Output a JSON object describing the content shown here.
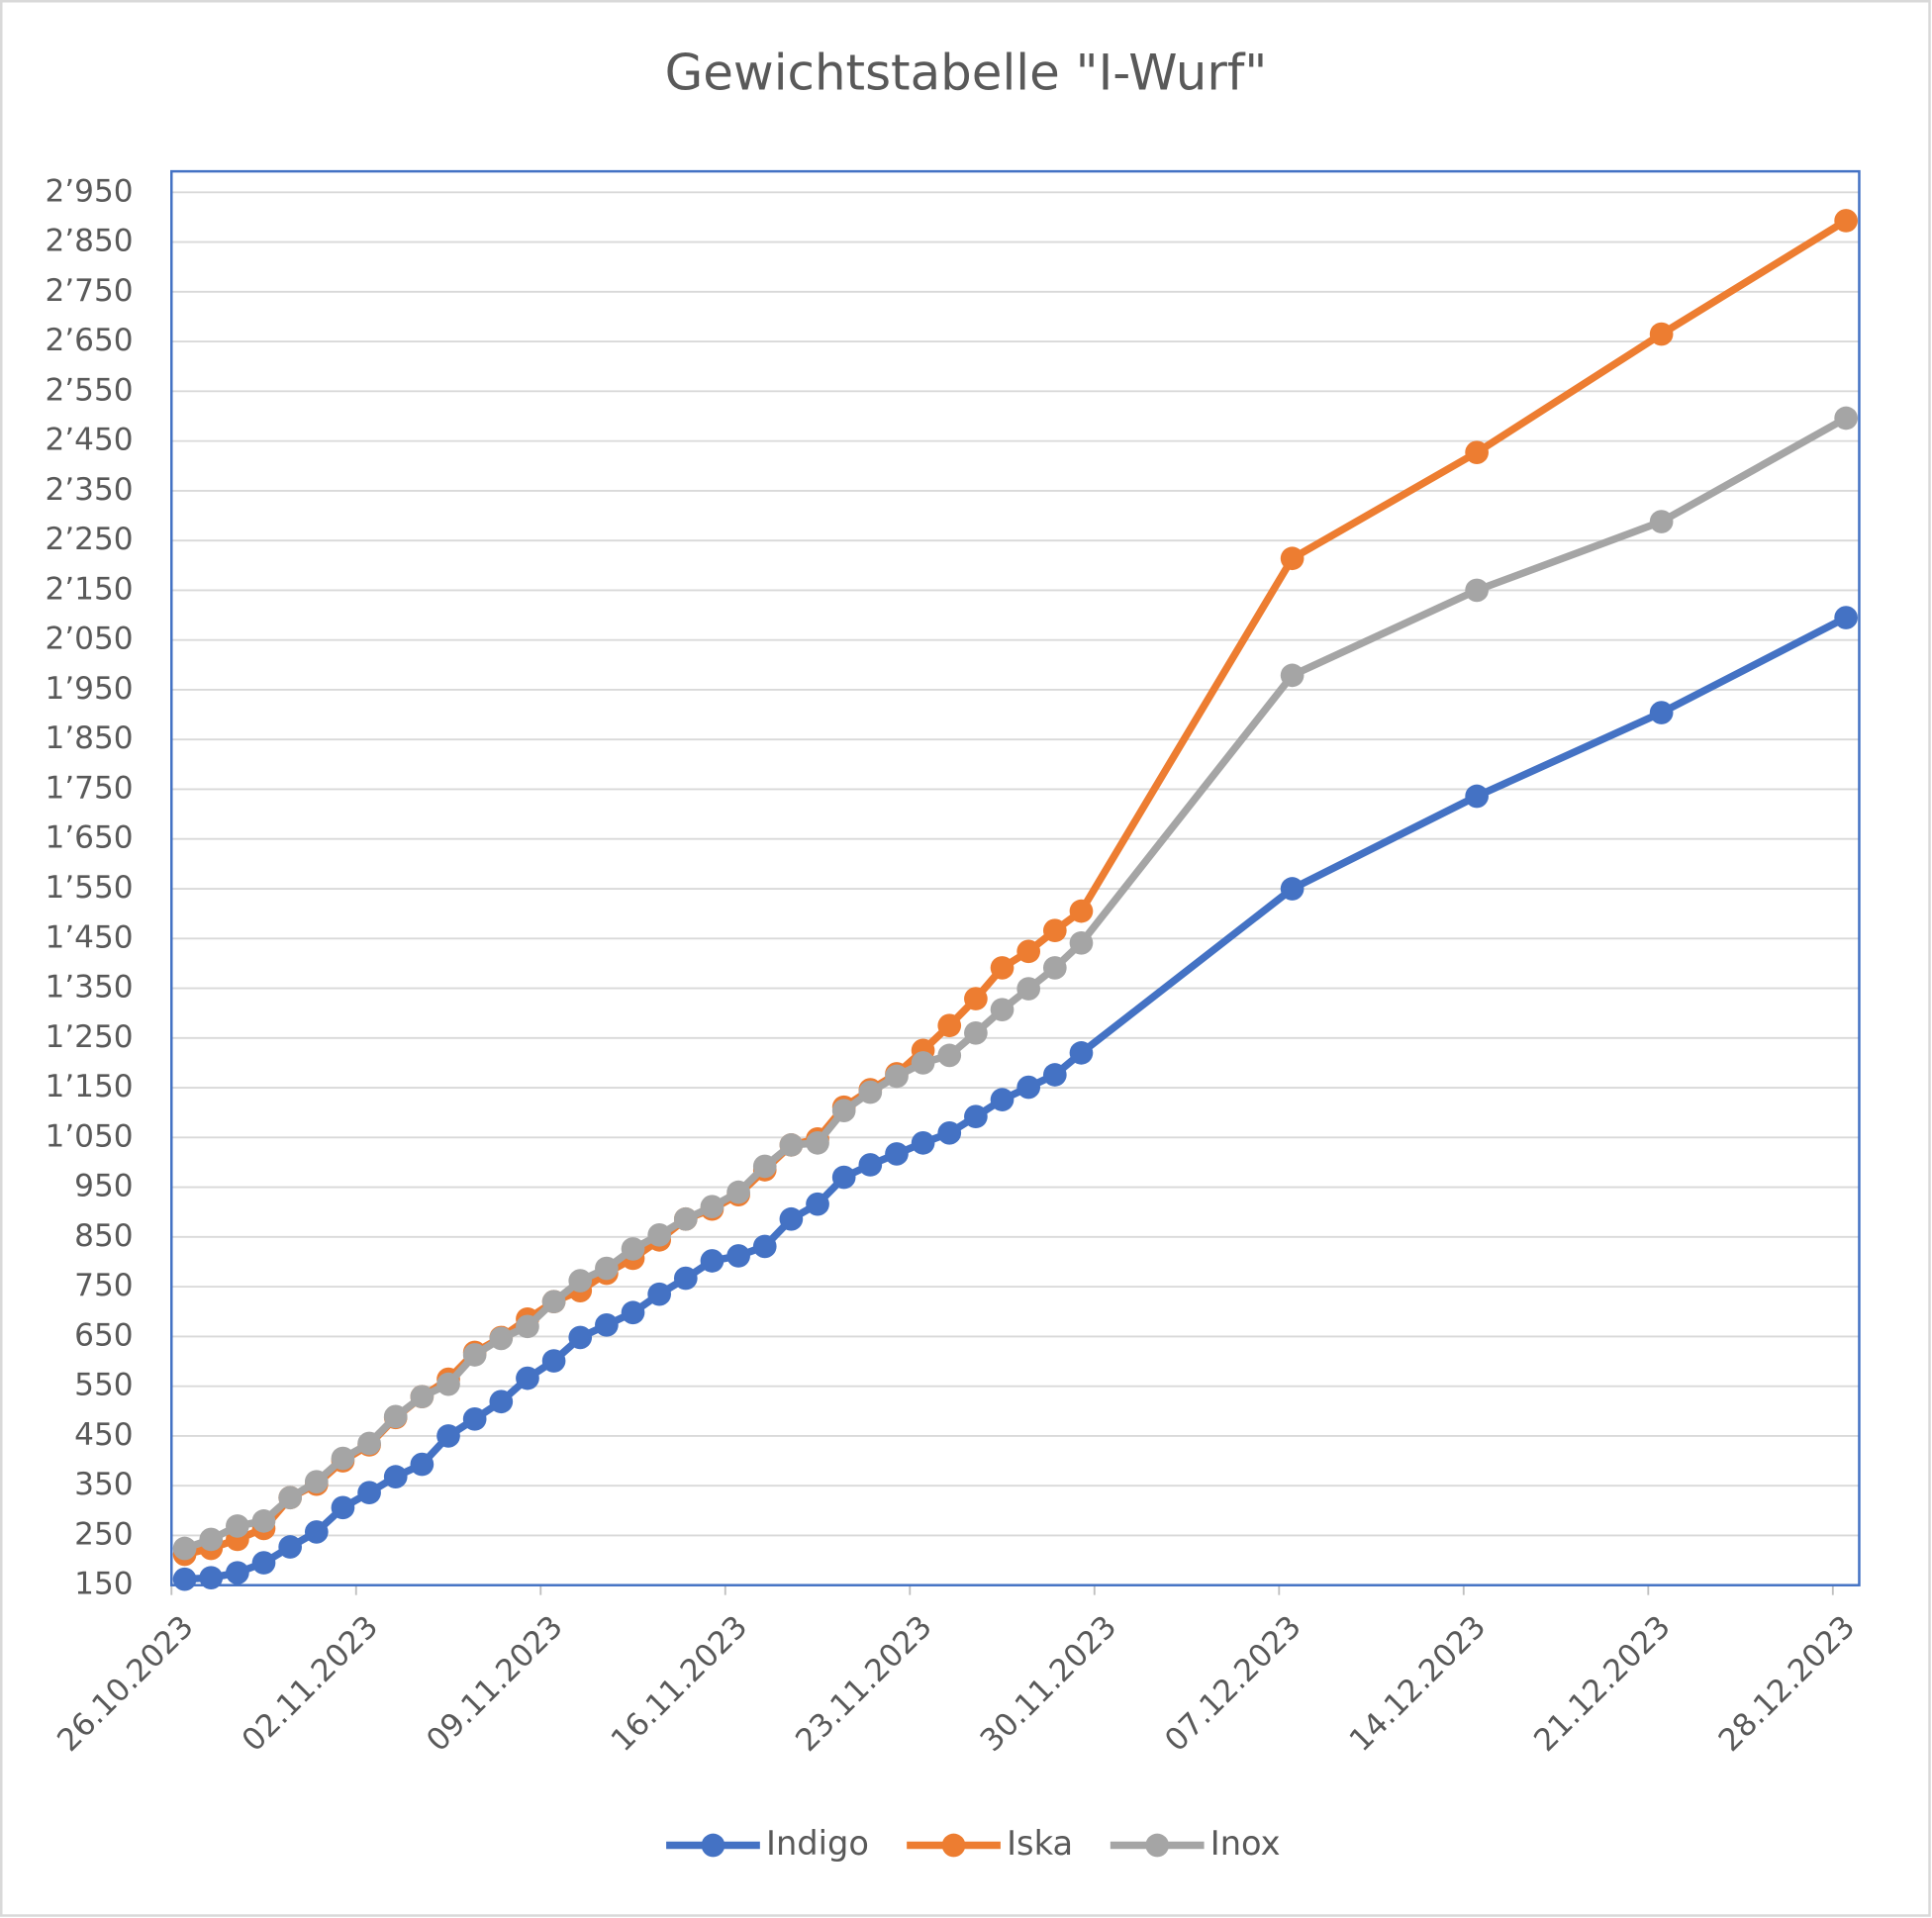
{
  "chart_data": {
    "type": "line",
    "title": "Gewichtstabelle \"I-Wurf\"",
    "x": [
      "26.10.2023",
      "27.10.2023",
      "28.10.2023",
      "29.10.2023",
      "30.10.2023",
      "31.10.2023",
      "01.11.2023",
      "02.11.2023",
      "03.11.2023",
      "04.11.2023",
      "05.11.2023",
      "06.11.2023",
      "07.11.2023",
      "08.11.2023",
      "09.11.2023",
      "10.11.2023",
      "11.11.2023",
      "12.11.2023",
      "13.11.2023",
      "14.11.2023",
      "15.11.2023",
      "16.11.2023",
      "17.11.2023",
      "18.11.2023",
      "19.11.2023",
      "20.11.2023",
      "21.11.2023",
      "22.11.2023",
      "23.11.2023",
      "24.11.2023",
      "25.11.2023",
      "26.11.2023",
      "27.11.2023",
      "28.11.2023",
      "29.11.2023",
      "07.12.2023",
      "14.12.2023",
      "21.12.2023",
      "28.12.2023"
    ],
    "series": [
      {
        "name": "Indigo",
        "color": "#4472c4",
        "values": [
          162,
          165,
          175,
          195,
          227,
          257,
          306,
          336,
          368,
          393,
          450,
          484,
          519,
          566,
          601,
          648,
          673,
          698,
          735,
          767,
          802,
          812,
          831,
          886,
          916,
          970,
          995,
          1017,
          1039,
          1059,
          1092,
          1126,
          1151,
          1176,
          1220,
          1550,
          1736,
          1904,
          2095
        ]
      },
      {
        "name": "Iska",
        "color": "#ed7d31",
        "values": [
          212,
          224,
          242,
          264,
          326,
          353,
          400,
          432,
          487,
          529,
          564,
          618,
          648,
          685,
          720,
          742,
          777,
          807,
          844,
          886,
          906,
          935,
          985,
          1035,
          1047,
          1111,
          1146,
          1178,
          1225,
          1275,
          1329,
          1391,
          1424,
          1466,
          1505,
          2214,
          2427,
          2665,
          2893
        ]
      },
      {
        "name": "Inox",
        "color": "#a5a5a5",
        "values": [
          224,
          242,
          269,
          279,
          326,
          358,
          405,
          435,
          489,
          529,
          554,
          613,
          646,
          670,
          720,
          762,
          787,
          826,
          854,
          886,
          911,
          940,
          992,
          1035,
          1039,
          1104,
          1141,
          1173,
          1200,
          1215,
          1260,
          1307,
          1349,
          1391,
          1441,
          1979,
          2150,
          2288,
          2496
        ]
      }
    ],
    "xlim": [
      "26.10.2023",
      "28.12.2023"
    ],
    "xticks": [
      "26.10.2023",
      "02.11.2023",
      "09.11.2023",
      "16.11.2023",
      "23.11.2023",
      "30.11.2023",
      "07.12.2023",
      "14.12.2023",
      "21.12.2023",
      "28.12.2023"
    ],
    "ylim": [
      150,
      2950
    ],
    "yticks": [
      150,
      250,
      350,
      450,
      550,
      650,
      750,
      850,
      950,
      {
        "value": 1050,
        "label": "1’050"
      },
      {
        "value": 1150,
        "label": "1’150"
      },
      {
        "value": 1250,
        "label": "1’250"
      },
      {
        "value": 1350,
        "label": "1’350"
      },
      {
        "value": 1450,
        "label": "1’450"
      },
      {
        "value": 1550,
        "label": "1’550"
      },
      {
        "value": 1650,
        "label": "1’650"
      },
      {
        "value": 1750,
        "label": "1’750"
      },
      {
        "value": 1850,
        "label": "1’850"
      },
      {
        "value": 1950,
        "label": "1’950"
      },
      {
        "value": 2050,
        "label": "2’050"
      },
      {
        "value": 2150,
        "label": "2’150"
      },
      {
        "value": 2250,
        "label": "2’250"
      },
      {
        "value": 2350,
        "label": "2’350"
      },
      {
        "value": 2450,
        "label": "2’450"
      },
      {
        "value": 2550,
        "label": "2’550"
      },
      {
        "value": 2650,
        "label": "2’650"
      },
      {
        "value": 2750,
        "label": "2’750"
      },
      {
        "value": 2850,
        "label": "2’850"
      },
      {
        "value": 2950,
        "label": "2’950"
      }
    ],
    "grid": true,
    "legend": "bottom"
  }
}
